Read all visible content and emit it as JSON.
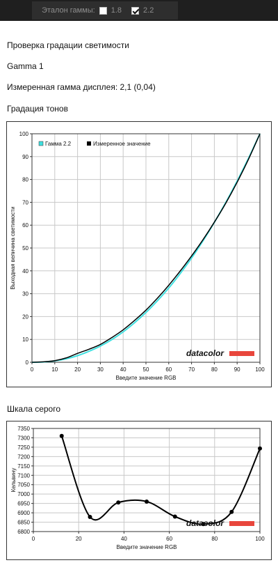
{
  "toolbar": {
    "label": "Эталон гаммы:",
    "options": [
      {
        "value": "1.8",
        "checked": false
      },
      {
        "value": "2.2",
        "checked": true
      }
    ]
  },
  "texts": {
    "section_title": "Проверка градации светимости",
    "profile_name": "Gamma 1",
    "measured_gamma": "Измеренная гамма дисплея: 2,1 (0,04)",
    "tone_title": "Градация тонов",
    "gray_title": "Шкала серого"
  },
  "brand": {
    "text": "datacolor",
    "color": "#e8463c"
  },
  "chart_data": [
    {
      "type": "line",
      "title": "",
      "xlabel": "Введите значение RGB",
      "ylabel": "Выходная величина светимости",
      "xlim": [
        0,
        100
      ],
      "ylim": [
        0,
        100
      ],
      "xticks": [
        0,
        10,
        20,
        30,
        40,
        50,
        60,
        70,
        80,
        90,
        100
      ],
      "yticks": [
        0,
        10,
        20,
        30,
        40,
        50,
        60,
        70,
        80,
        90,
        100
      ],
      "grid": true,
      "legend_position": "top-left",
      "series": [
        {
          "name": "Гамма 2.2",
          "color": "#40e0e0",
          "x": [
            0,
            5,
            10,
            15,
            20,
            25,
            30,
            35,
            40,
            45,
            50,
            55,
            60,
            65,
            70,
            75,
            80,
            85,
            90,
            95,
            100
          ],
          "y": [
            0,
            0.1,
            0.6,
            1.5,
            2.9,
            4.8,
            7.1,
            9.9,
            13.3,
            17.3,
            21.8,
            26.9,
            32.5,
            38.8,
            45.6,
            53.1,
            61.2,
            69.9,
            79.3,
            89.3,
            100
          ]
        },
        {
          "name": "Измеренное значение",
          "color": "#000000",
          "x": [
            0,
            5,
            10,
            15,
            20,
            25,
            30,
            35,
            40,
            45,
            50,
            55,
            60,
            65,
            70,
            75,
            80,
            85,
            90,
            95,
            100
          ],
          "y": [
            0,
            0.2,
            0.7,
            1.9,
            3.9,
            5.7,
            7.8,
            10.8,
            14.2,
            18.3,
            22.8,
            28.0,
            33.7,
            39.9,
            46.5,
            53.6,
            61.3,
            69.6,
            78.8,
            88.9,
            100
          ]
        }
      ]
    },
    {
      "type": "line",
      "title": "",
      "xlabel": "Введите значение RGB",
      "ylabel": "Кельвину",
      "xlim": [
        0,
        100
      ],
      "ylim": [
        6800,
        7350
      ],
      "xticks": [
        0,
        20,
        40,
        60,
        80,
        100
      ],
      "yticks": [
        6800,
        6850,
        6900,
        6950,
        7000,
        7050,
        7100,
        7150,
        7200,
        7250,
        7300,
        7350
      ],
      "grid": true,
      "series": [
        {
          "name": "",
          "color": "#000000",
          "x": [
            12.5,
            25,
            37.5,
            50,
            62.5,
            75,
            87.5,
            100
          ],
          "y": [
            7310,
            6878,
            6955,
            6960,
            6880,
            6840,
            6905,
            7243
          ]
        }
      ]
    }
  ]
}
